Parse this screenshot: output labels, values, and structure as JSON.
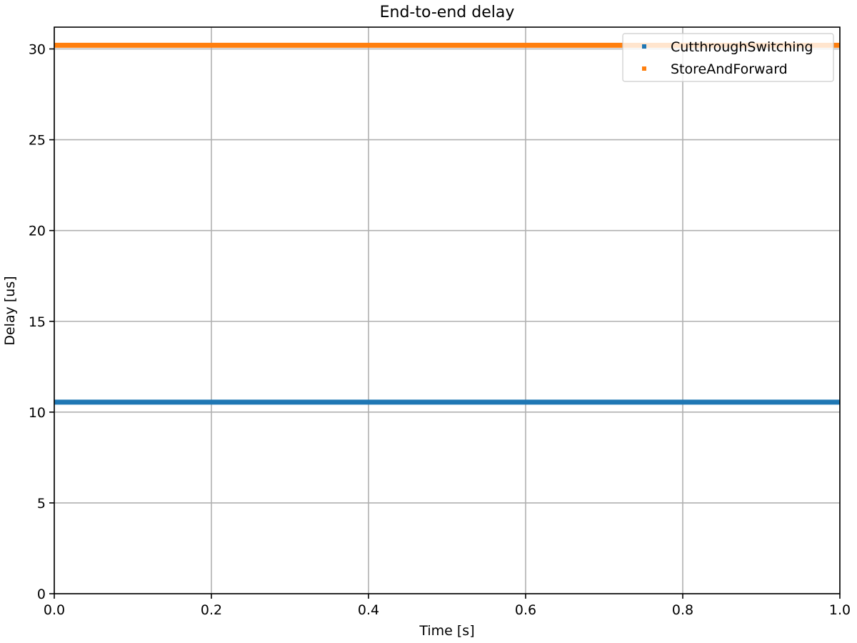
{
  "chart_data": {
    "type": "scatter",
    "title": "End-to-end delay",
    "xlabel": "Time [s]",
    "ylabel": "Delay [us]",
    "xlim": [
      0.0,
      1.0
    ],
    "ylim": [
      0,
      31.2
    ],
    "x_ticks": [
      0.0,
      0.2,
      0.4,
      0.6,
      0.8,
      1.0
    ],
    "x_tick_labels": [
      "0.0",
      "0.2",
      "0.4",
      "0.6",
      "0.8",
      "1.0"
    ],
    "y_ticks": [
      0,
      5,
      10,
      15,
      20,
      25,
      30
    ],
    "y_tick_labels": [
      "0",
      "5",
      "10",
      "15",
      "20",
      "25",
      "30"
    ],
    "grid": true,
    "legend_position": "top-right",
    "series": [
      {
        "name": "CutthroughSwitching",
        "color": "#1f77b4",
        "x_range": [
          0.0,
          1.0
        ],
        "value": 10.55
      },
      {
        "name": "StoreAndForward",
        "color": "#ff7f0e",
        "x_range": [
          0.0,
          1.0
        ],
        "value": 30.2
      }
    ]
  }
}
